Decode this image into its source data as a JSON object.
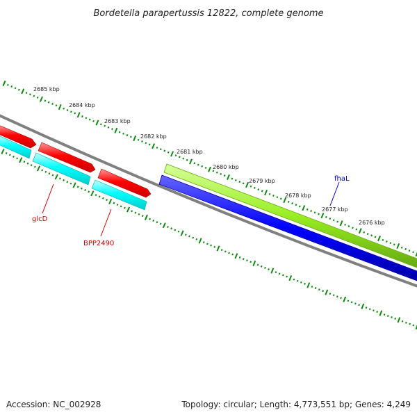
{
  "title": "Bordetella parapertussis 12822, complete genome",
  "footer": {
    "accession": "Accession: NC_002928",
    "stats": "Topology: circular; Length: 4,773,551 bp; Genes: 4,249"
  },
  "ruler": {
    "labels": [
      "2685 kbp",
      "2684 kbp",
      "2683 kbp",
      "2682 kbp",
      "2681 kbp",
      "2680 kbp",
      "2679 kbp",
      "2678 kbp",
      "2677 kbp",
      "2676 kbp"
    ]
  },
  "genes": [
    {
      "name": "glcD",
      "color": "#cc0000"
    },
    {
      "name": "BPP2490",
      "color": "#cc0000"
    },
    {
      "name": "fhaL",
      "color": "#0000cc"
    }
  ],
  "colors": {
    "forward_feature": "#ff0000",
    "reverse_feature": "#00ffff",
    "green_feature": "#99ee22",
    "blue_feature": "#0000ff",
    "backbone": "#808080",
    "ticks": "#118811"
  }
}
